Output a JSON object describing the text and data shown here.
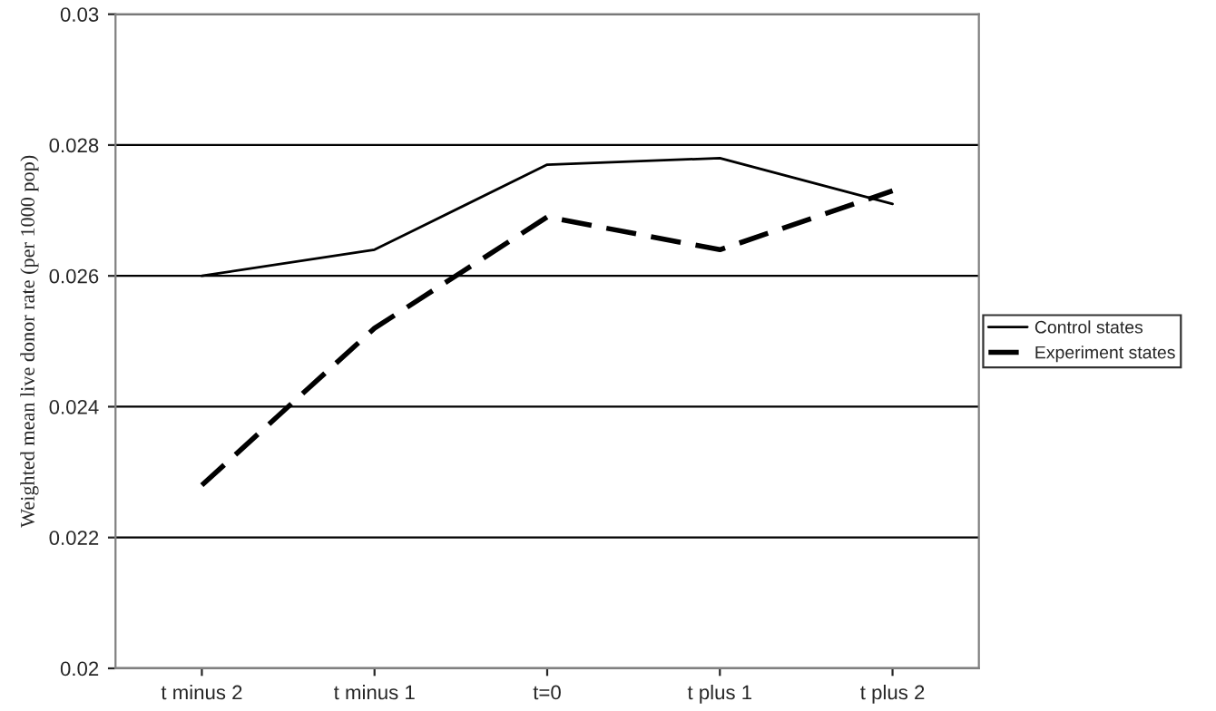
{
  "chart_data": {
    "type": "line",
    "ylabel": "Weighted mean live donor rate (per 1000 pop)",
    "categories": [
      "t minus 2",
      "t minus 1",
      "t=0",
      "t plus 1",
      "t plus 2"
    ],
    "series": [
      {
        "name": "Control states",
        "color": "#000000",
        "line_style": "solid",
        "values": [
          0.026,
          0.0264,
          0.0277,
          0.0278,
          0.0271
        ]
      },
      {
        "name": "Experiment states",
        "color": "#000000",
        "line_style": "dashed",
        "values": [
          0.0228,
          0.0252,
          0.0269,
          0.0264,
          0.0273
        ]
      }
    ],
    "ylim": [
      0.02,
      0.03
    ],
    "yticks": [
      0.02,
      0.022,
      0.024,
      0.026,
      0.028,
      0.03
    ],
    "grid": "y",
    "legend": "right",
    "marker": "none"
  }
}
